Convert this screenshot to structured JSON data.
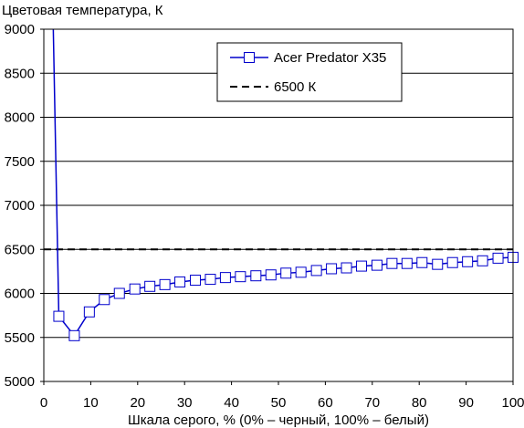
{
  "chart_data": {
    "type": "line",
    "title": "Цветовая температура, К",
    "xlabel": "Шкала серого, % (0% – черный, 100% – белый)",
    "ylabel": "",
    "xlim": [
      0,
      100
    ],
    "ylim": [
      5000,
      9000
    ],
    "x_ticks": [
      0,
      10,
      20,
      30,
      40,
      50,
      60,
      70,
      80,
      90,
      100
    ],
    "y_ticks": [
      5000,
      5500,
      6000,
      6500,
      7000,
      7500,
      8000,
      8500,
      9000
    ],
    "grid": "horizontal",
    "legend_position": "top-right",
    "series": [
      {
        "name": "Acer Predator X35",
        "color": "#0000cc",
        "marker": "square",
        "x": [
          2,
          3.2,
          6.5,
          9.7,
          12.9,
          16.1,
          19.4,
          22.6,
          25.8,
          29,
          32.3,
          35.5,
          38.7,
          41.9,
          45.2,
          48.4,
          51.6,
          54.8,
          58.1,
          61.3,
          64.5,
          67.7,
          71,
          74.2,
          77.4,
          80.6,
          83.9,
          87.1,
          90.3,
          93.5,
          96.8,
          100
        ],
        "y": [
          9050,
          5740,
          5520,
          5790,
          5930,
          6000,
          6050,
          6080,
          6100,
          6130,
          6150,
          6160,
          6180,
          6190,
          6200,
          6210,
          6230,
          6240,
          6260,
          6280,
          6290,
          6310,
          6320,
          6340,
          6340,
          6350,
          6330,
          6350,
          6360,
          6370,
          6400,
          6410
        ]
      },
      {
        "name": "6500 К",
        "color": "#000000",
        "style": "dashed",
        "x": [
          0,
          100
        ],
        "y": [
          6500,
          6500
        ]
      }
    ]
  }
}
